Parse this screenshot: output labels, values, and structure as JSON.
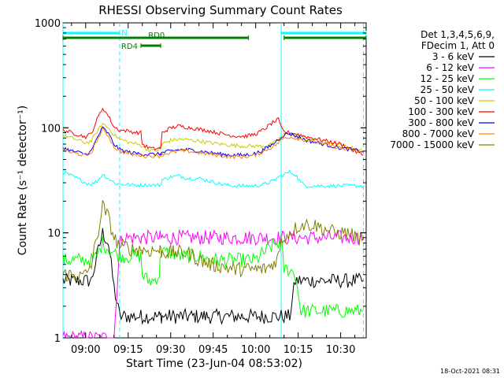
{
  "chart_data": {
    "type": "line",
    "title": "RHESSI Observing Summary Count Rates",
    "xlabel": "Start Time (23-Jun-04 08:53:02)",
    "ylabel": "Count Rate (s⁻¹ detector⁻¹)",
    "yscale": "log",
    "ylim": [
      1,
      1000
    ],
    "x_range_minutes": [
      -8.0,
      99.0
    ],
    "x_ticks": [
      {
        "label": "09:00",
        "minute": 0
      },
      {
        "label": "09:15",
        "minute": 15
      },
      {
        "label": "09:30",
        "minute": 30
      },
      {
        "label": "09:45",
        "minute": 45
      },
      {
        "label": "10:00",
        "minute": 60
      },
      {
        "label": "10:15",
        "minute": 75
      },
      {
        "label": "10:30",
        "minute": 90
      }
    ],
    "y_ticks": [
      {
        "label": "1",
        "value": 1
      },
      {
        "label": "10",
        "value": 10
      },
      {
        "label": "100",
        "value": 100
      },
      {
        "label": "1000",
        "value": 1000
      }
    ],
    "legend_header": [
      "Det 1,3,4,5,6,9,",
      "FDecim 1, Att 0"
    ],
    "legend_position": "right",
    "footer_date": "18-Oct-2021 08:31",
    "annotations": [
      {
        "label": "N",
        "type": "night",
        "color": "#00ffff",
        "intervals": [
          [
            -8.0,
            12.0
          ],
          [
            69.0,
            99.0
          ]
        ]
      },
      {
        "label": "RD0",
        "type": "flag",
        "color": "#008000",
        "intervals": [
          [
            -8.0,
            57.5
          ],
          [
            70.0,
            99.0
          ]
        ]
      },
      {
        "label": "RD4",
        "type": "flag",
        "color": "#008000",
        "intervals": [
          [
            19.5,
            26.5
          ]
        ]
      }
    ],
    "vlines": [
      {
        "minute": -8.0,
        "style": "solid",
        "color": "#00ffff"
      },
      {
        "minute": 12.0,
        "style": "dashed",
        "color": "#00ffff"
      },
      {
        "minute": 69.0,
        "style": "solid",
        "color": "#00ffff"
      },
      {
        "minute": 98.0,
        "style": "dashed",
        "color": "#00ffff"
      }
    ],
    "x": [
      -8,
      -5,
      -2,
      0,
      2,
      4,
      6,
      8,
      10,
      12,
      14,
      16,
      18,
      19.5,
      20,
      22,
      24,
      26,
      26.5,
      27,
      30,
      33,
      36,
      40,
      44,
      48,
      52,
      56,
      60,
      63,
      66,
      68,
      69,
      70,
      72,
      74,
      76,
      78,
      80,
      82,
      84,
      86,
      88,
      90,
      92,
      94,
      96,
      98
    ],
    "series": [
      {
        "name": "3 - 6 keV",
        "color": "#000000",
        "values": [
          3.5,
          3.5,
          3.5,
          3.5,
          3.5,
          6,
          10,
          8,
          3,
          1.6,
          1.6,
          1.6,
          1.6,
          1.6,
          1.6,
          1.6,
          1.6,
          1.6,
          1.6,
          1.6,
          1.6,
          1.6,
          1.6,
          1.6,
          1.6,
          1.6,
          1.6,
          1.6,
          1.6,
          1.6,
          1.6,
          1.6,
          1.6,
          1.6,
          1.6,
          3.5,
          3.5,
          3.5,
          3.5,
          3.5,
          3.5,
          3.5,
          3.5,
          3.5,
          3.5,
          3.5,
          3.5,
          3.5
        ]
      },
      {
        "name": "6 - 12 keV",
        "color": "#ff00ff",
        "values": [
          1,
          1,
          1,
          1,
          1,
          1,
          1,
          1,
          1,
          8,
          9,
          9,
          9,
          9,
          9,
          9,
          9,
          9,
          9,
          9,
          9,
          9,
          9,
          9,
          9,
          9,
          9,
          9,
          9,
          9,
          9,
          9,
          9,
          9,
          9,
          9,
          9,
          9,
          9,
          9,
          9,
          9,
          9,
          9,
          9,
          9,
          9,
          9
        ]
      },
      {
        "name": "12 - 25 keV",
        "color": "#00ff00",
        "values": [
          5.5,
          5.5,
          5.5,
          5.5,
          5.5,
          6,
          8,
          7,
          6.5,
          6,
          6,
          6,
          6,
          6,
          4,
          3.5,
          3.5,
          4,
          6.5,
          6.5,
          6.5,
          6,
          6,
          6,
          5.5,
          5.5,
          5.5,
          5.5,
          5.5,
          6.5,
          7.5,
          8,
          8.5,
          4.5,
          4.5,
          4,
          1.8,
          1.8,
          1.8,
          1.8,
          1.8,
          1.8,
          1.8,
          1.8,
          1.8,
          1.8,
          1.8,
          1.8
        ]
      },
      {
        "name": "25 - 50 keV",
        "color": "#00ffff",
        "values": [
          38,
          35,
          32,
          30,
          29,
          31,
          36,
          33,
          30,
          29,
          29,
          28.5,
          28.5,
          28.5,
          28.5,
          28.5,
          28.5,
          28.5,
          28.5,
          32,
          34,
          35,
          33,
          33,
          31,
          29,
          28,
          28,
          28,
          29,
          31,
          34,
          35,
          36,
          38,
          36,
          30,
          28,
          28,
          28,
          28,
          28,
          28,
          28,
          28,
          28,
          28,
          28
        ]
      },
      {
        "name": "50 - 100 keV",
        "color": "#cccc00",
        "values": [
          85,
          80,
          75,
          72,
          75,
          92,
          110,
          100,
          86,
          78,
          75,
          72,
          70,
          68,
          66,
          62,
          60,
          62,
          63,
          70,
          76,
          78,
          77,
          75,
          72,
          70,
          68,
          67,
          67,
          67,
          70,
          78,
          82,
          86,
          88,
          85,
          82,
          80,
          78,
          76,
          74,
          72,
          70,
          68,
          66,
          64,
          62,
          60
        ]
      },
      {
        "name": "100 - 300 keV",
        "color": "#ff0000",
        "values": [
          95,
          90,
          85,
          82,
          88,
          120,
          155,
          130,
          102,
          95,
          94,
          92,
          90,
          90,
          70,
          65,
          63,
          64,
          65,
          90,
          100,
          104,
          101,
          97,
          93,
          88,
          84,
          83,
          87,
          97,
          112,
          120,
          100,
          92,
          90,
          88,
          85,
          82,
          80,
          78,
          76,
          74,
          72,
          70,
          66,
          62,
          58,
          55
        ]
      },
      {
        "name": "300 - 800 keV",
        "color": "#0000ff",
        "values": [
          65,
          60,
          58,
          56,
          60,
          80,
          100,
          88,
          70,
          62,
          60,
          58,
          57,
          57,
          56,
          56,
          56,
          56,
          57,
          58,
          60,
          62,
          62,
          60,
          58,
          56,
          55,
          55,
          57,
          62,
          70,
          78,
          82,
          86,
          88,
          84,
          80,
          76,
          74,
          72,
          70,
          68,
          66,
          64,
          63,
          62,
          61,
          60
        ]
      },
      {
        "name": "800 - 7000 keV",
        "color": "#ff8000",
        "values": [
          62,
          58,
          56,
          54,
          58,
          76,
          96,
          84,
          66,
          60,
          58,
          56,
          55,
          55,
          54,
          54,
          54,
          54,
          55,
          56,
          58,
          60,
          60,
          58,
          56,
          54,
          53,
          53,
          55,
          60,
          66,
          72,
          76,
          80,
          82,
          80,
          78,
          76,
          74,
          72,
          70,
          68,
          66,
          64,
          62,
          61,
          60,
          58
        ]
      },
      {
        "name": "7000 - 15000 keV",
        "color": "#808000",
        "values": [
          4,
          4,
          3.8,
          4,
          5,
          9,
          18,
          14,
          9,
          7.5,
          7.5,
          7,
          7,
          7,
          6.8,
          6.8,
          6.8,
          6.8,
          6.8,
          6.5,
          6.5,
          6.5,
          6.5,
          5.5,
          5,
          4.8,
          4.5,
          4.5,
          4.5,
          4.5,
          5,
          6,
          8,
          9,
          10,
          11,
          12,
          12,
          12,
          11.5,
          11,
          10.5,
          10,
          10,
          10,
          9.5,
          9,
          8.5
        ]
      }
    ]
  }
}
